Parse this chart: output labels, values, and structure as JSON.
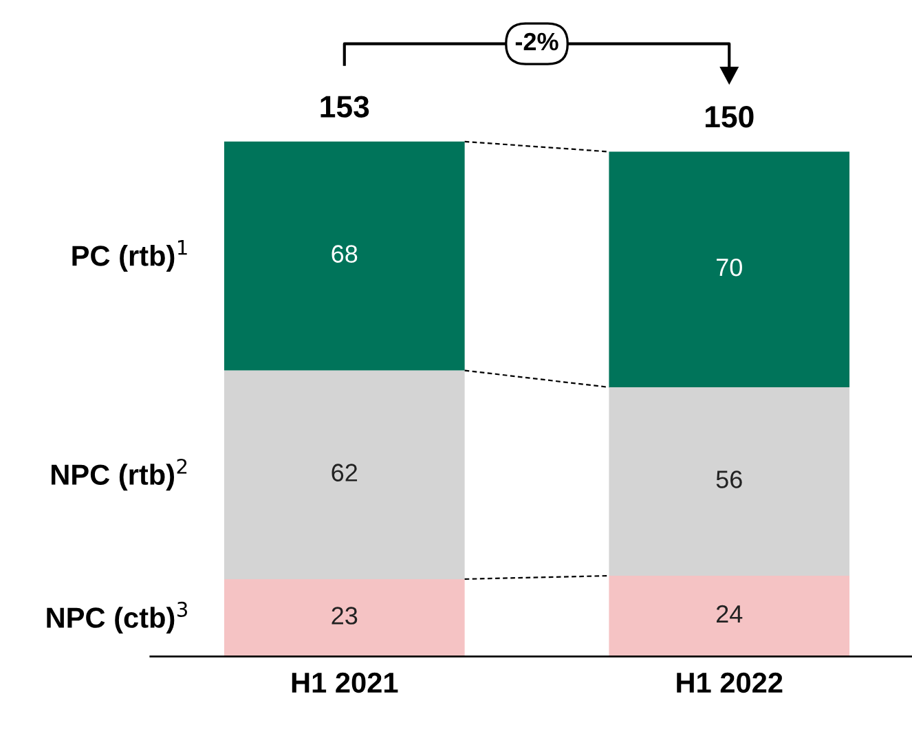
{
  "chart_data": {
    "type": "bar",
    "stacked": true,
    "categories": [
      "H1 2021",
      "H1 2022"
    ],
    "series": [
      {
        "name": "NPC (ctb)$^{3}$",
        "color": "#f5c3c4",
        "values": [
          23,
          24
        ]
      },
      {
        "name": "NPC (rtb)$^{2}$",
        "color": "#d4d4d4",
        "values": [
          62,
          56
        ]
      },
      {
        "name": "PC (rtb)$^{1}$",
        "color": "#00745a",
        "values": [
          68,
          70
        ]
      }
    ],
    "data_labels": true,
    "totals": [
      "153",
      "150"
    ],
    "annotations": [
      "-2%"
    ]
  }
}
